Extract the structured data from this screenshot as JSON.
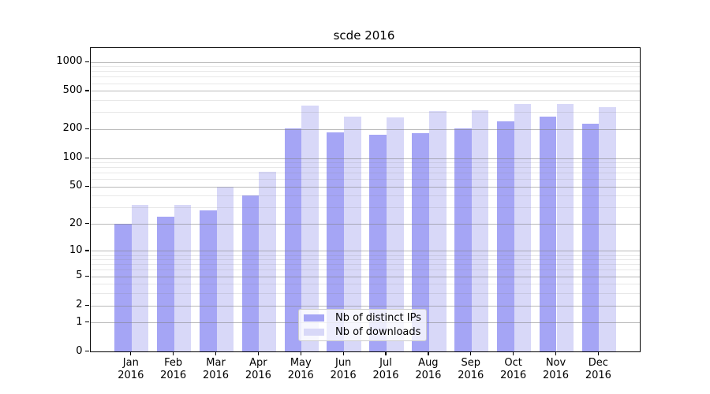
{
  "chart_data": {
    "type": "bar",
    "title": "scde 2016",
    "xlabel": "",
    "ylabel": "",
    "categories": [
      "Jan",
      "Feb",
      "Mar",
      "Apr",
      "May",
      "Jun",
      "Jul",
      "Aug",
      "Sep",
      "Oct",
      "Nov",
      "Dec"
    ],
    "category_year_line": "2016",
    "series": [
      {
        "name": "Nb of distinct IPs",
        "color": "#a5a5f5",
        "values": [
          20,
          24,
          28,
          40,
          203,
          184,
          176,
          183,
          203,
          242,
          268,
          226
        ]
      },
      {
        "name": "Nb of downloads",
        "color": "#d8d8f8",
        "values": [
          32,
          32,
          50,
          72,
          350,
          270,
          266,
          310,
          316,
          362,
          362,
          340
        ]
      }
    ],
    "yscale": "log1p",
    "ylim": [
      0,
      1390
    ],
    "yticks": [
      0,
      1,
      2,
      5,
      10,
      20,
      50,
      100,
      200,
      500,
      1000
    ],
    "ytick_labels": [
      "0",
      "1",
      "2",
      "5",
      "10",
      "20",
      "50",
      "100",
      "200",
      "500",
      "1000"
    ],
    "yticks_minor": [
      3,
      4,
      6,
      7,
      8,
      9,
      30,
      40,
      60,
      70,
      80,
      90,
      300,
      400,
      600,
      700,
      800,
      900
    ],
    "grid": true,
    "legend_position": "lower center"
  }
}
